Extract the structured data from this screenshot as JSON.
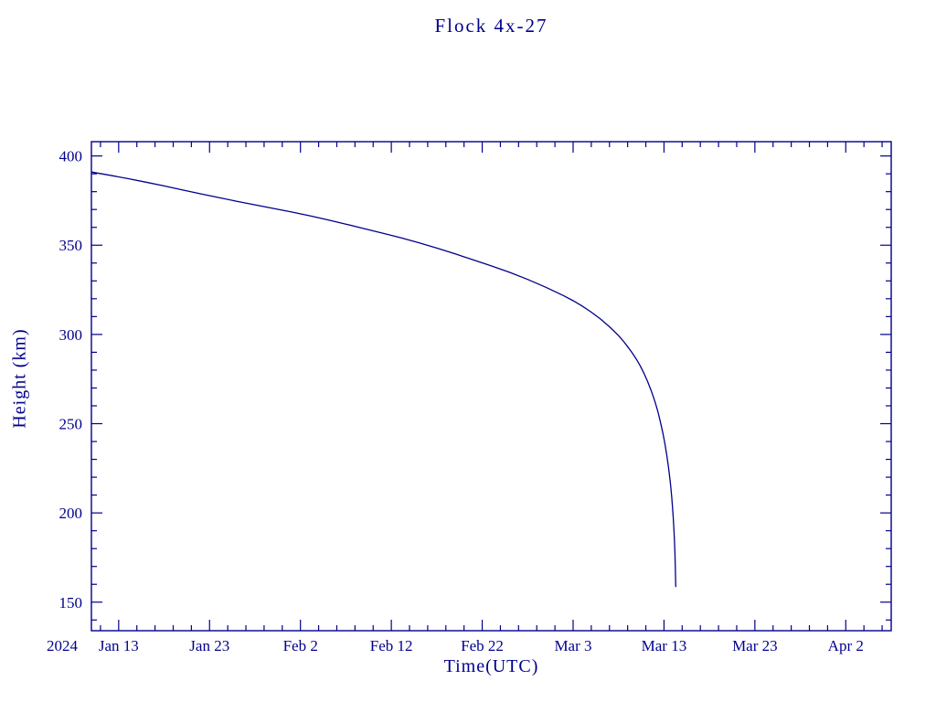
{
  "colors": {
    "ink": "#00008B",
    "background": "#ffffff"
  },
  "chart_data": {
    "type": "line",
    "title": "Flock 4x-27",
    "xlabel": "Time(UTC)",
    "ylabel": "Height (km)",
    "year_label": "2024",
    "x_units": "days (day 3 = Jan 13, 2024)",
    "xlim": [
      0,
      88
    ],
    "ylim": [
      134,
      408
    ],
    "grid": false,
    "legend": false,
    "x_major_ticks": [
      {
        "day": 3,
        "label": "Jan 13"
      },
      {
        "day": 13,
        "label": "Jan 23"
      },
      {
        "day": 23,
        "label": "Feb 2"
      },
      {
        "day": 33,
        "label": "Feb 12"
      },
      {
        "day": 43,
        "label": "Feb 22"
      },
      {
        "day": 53,
        "label": "Mar 3"
      },
      {
        "day": 63,
        "label": "Mar 13"
      },
      {
        "day": 73,
        "label": "Mar 23"
      },
      {
        "day": 83,
        "label": "Apr 2"
      }
    ],
    "x_minor_step_days": 2,
    "y_major_ticks": [
      150,
      200,
      250,
      300,
      350,
      400
    ],
    "y_minor_step_km": 10,
    "series": [
      {
        "name": "Flock 4x-27 orbital height",
        "color": "#00008B",
        "points": [
          [
            0,
            391.0
          ],
          [
            2,
            389.2
          ],
          [
            4,
            387.3
          ],
          [
            6,
            385.3
          ],
          [
            8,
            383.2
          ],
          [
            10,
            381.0
          ],
          [
            12,
            378.8
          ],
          [
            14,
            376.7
          ],
          [
            16,
            374.6
          ],
          [
            18,
            372.6
          ],
          [
            20,
            370.6
          ],
          [
            22,
            368.6
          ],
          [
            24,
            366.5
          ],
          [
            26,
            364.2
          ],
          [
            28,
            361.8
          ],
          [
            30,
            359.3
          ],
          [
            32,
            356.8
          ],
          [
            34,
            354.2
          ],
          [
            36,
            351.4
          ],
          [
            38,
            348.4
          ],
          [
            40,
            345.2
          ],
          [
            42,
            341.8
          ],
          [
            44,
            338.4
          ],
          [
            46,
            334.8
          ],
          [
            48,
            330.8
          ],
          [
            50,
            326.4
          ],
          [
            52,
            321.6
          ],
          [
            53,
            318.9
          ],
          [
            54,
            315.9
          ],
          [
            55,
            312.5
          ],
          [
            56,
            308.7
          ],
          [
            57,
            304.3
          ],
          [
            58,
            299.3
          ],
          [
            58.5,
            296.4
          ],
          [
            59,
            293.2
          ],
          [
            59.5,
            289.7
          ],
          [
            60,
            285.8
          ],
          [
            60.4,
            282.2
          ],
          [
            60.8,
            278.2
          ],
          [
            61.2,
            273.6
          ],
          [
            61.6,
            268.4
          ],
          [
            62,
            262.4
          ],
          [
            62.3,
            257.2
          ],
          [
            62.6,
            251.2
          ],
          [
            62.9,
            244.2
          ],
          [
            63.1,
            238.8
          ],
          [
            63.3,
            232.6
          ],
          [
            63.5,
            225.4
          ],
          [
            63.7,
            216.8
          ],
          [
            63.85,
            208.8
          ],
          [
            64,
            198.6
          ],
          [
            64.1,
            189.6
          ],
          [
            64.15,
            184.0
          ],
          [
            64.2,
            177.4
          ],
          [
            64.25,
            169.6
          ],
          [
            64.3,
            158.5
          ]
        ]
      }
    ]
  }
}
